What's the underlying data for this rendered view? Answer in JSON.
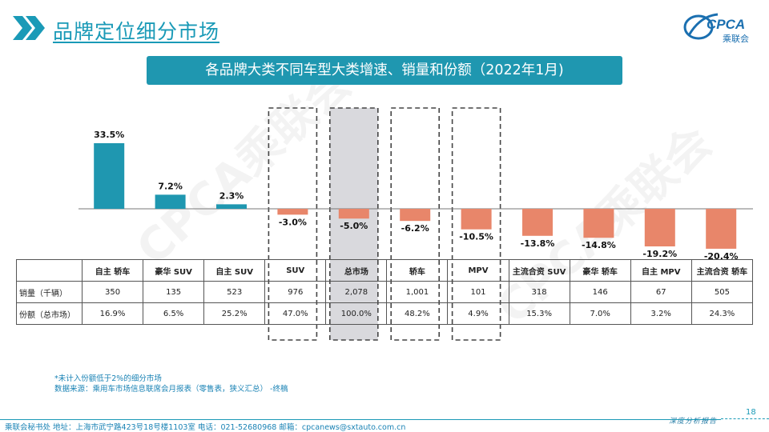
{
  "header": {
    "title": "品牌定位细分市场",
    "subtitle": "各品牌大类不同车型大类增速、销量和份额（2022年1月)",
    "logo_text": "CPCA",
    "logo_sub": "乘联会",
    "watermark": "CPCA乘联会"
  },
  "colors": {
    "positive": "#1f97b0",
    "negative": "#e8866a",
    "accent": "#1a9ab7",
    "highlight_fill": "#d9d9dd"
  },
  "chart_data": {
    "type": "bar",
    "categories": [
      "自主 轿车",
      "豪华 SUV",
      "自主 SUV",
      "SUV",
      "总市场",
      "轿车",
      "MPV",
      "主流合资 SUV",
      "豪华 轿车",
      "自主 MPV",
      "主流合资 轿车"
    ],
    "values": [
      33.5,
      7.2,
      2.3,
      -3.0,
      -5.0,
      -6.2,
      -10.5,
      -13.8,
      -14.8,
      -19.2,
      -20.4
    ],
    "value_labels": [
      "33.5%",
      "7.2%",
      "2.3%",
      "-3.0%",
      "-5.0%",
      "-6.2%",
      "-10.5%",
      "-13.8%",
      "-14.8%",
      "-19.2%",
      "-20.4%"
    ],
    "highlighted": [
      "SUV",
      "总市场",
      "轿车",
      "MPV"
    ],
    "ylim": [
      -21,
      34
    ],
    "grid": false,
    "legend": "none"
  },
  "table": {
    "rows": [
      {
        "label": "",
        "values": [
          "自主 轿车",
          "豪华 SUV",
          "自主 SUV",
          "SUV",
          "总市场",
          "轿车",
          "MPV",
          "主流合资 SUV",
          "豪华 轿车",
          "自主 MPV",
          "主流合资 轿车"
        ]
      },
      {
        "label": "销量（千辆）",
        "values": [
          "350",
          "135",
          "523",
          "976",
          "2,078",
          "1,001",
          "101",
          "318",
          "146",
          "67",
          "505"
        ]
      },
      {
        "label": "份额（总市场）",
        "values": [
          "16.9%",
          "6.5%",
          "25.2%",
          "47.0%",
          "100.0%",
          "48.2%",
          "4.9%",
          "15.3%",
          "7.0%",
          "3.2%",
          "24.3%"
        ]
      }
    ]
  },
  "notes": {
    "line1": "*未计入份额低于2%的细分市场",
    "line2": "数据来源：乘用车市场信息联席会月报表（零售表，狭义汇总） -终稿"
  },
  "footer": {
    "text": "乘联会秘书处  地址：上海市武宁路423号18号楼1103室  电话：021-52680968  邮箱：cpcanews@sxtauto.com.cn",
    "page": "18",
    "slogan": "深度分析报告"
  }
}
